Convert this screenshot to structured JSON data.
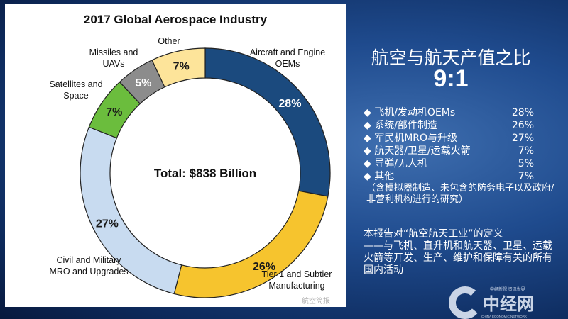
{
  "chart_data": {
    "type": "pie",
    "donut": true,
    "title": "2017 Global Aerospace Industry",
    "center_label": "Total: $838 Billion",
    "start": "12 o'clock, clockwise",
    "slices": [
      {
        "label": "Aircraft and Engine OEMs",
        "value": 28,
        "display": "28%",
        "color": "#1b4a7e"
      },
      {
        "label": "Tier 1 and Subtier Manufacturing",
        "value": 26,
        "display": "26%",
        "color": "#f6c42e"
      },
      {
        "label": "Civil and Military MRO and Upgrades",
        "value": 27,
        "display": "27%",
        "color": "#c8dbf0"
      },
      {
        "label": "Satellites and Space",
        "value": 7,
        "display": "7%",
        "color": "#6bbd3d"
      },
      {
        "label": "Missiles and UAVs",
        "value": 5,
        "display": "5%",
        "color": "#8c8c8c"
      },
      {
        "label": "Other",
        "value": 7,
        "display": "7%",
        "color": "#fde49a"
      }
    ]
  },
  "right": {
    "title": "航空与航天产值之比",
    "ratio": "9:1",
    "items": [
      {
        "label": "◆ 飞机/发动机OEMs",
        "value": "28%"
      },
      {
        "label": "◆ 系统/部件制造",
        "value": "26%"
      },
      {
        "label": "◆ 军民机MRO与升级",
        "value": "27%"
      },
      {
        "label": "◆ 航天器/卫星/运载火箭",
        "value": "7%"
      },
      {
        "label": "◆ 导弹/无人机",
        "value": "5%"
      },
      {
        "label": "◆ 其他",
        "value": "7%"
      }
    ],
    "note": "（含模拟器制造、未包含的防务电子以及政府/非营利机构进行的研究）",
    "definition_title": "本报告对“航空航天工业”的定义",
    "definition": "——与飞机、直升机和航天器、卫星、运载火箭等开发、生产、维护和保障有关的所有国内活动"
  },
  "watermark": "航空简报",
  "logo": {
    "text": "中经网",
    "slogan": "中经新视 资讯世界",
    "sub": "CHINA ECONOMIC NETWORK"
  }
}
